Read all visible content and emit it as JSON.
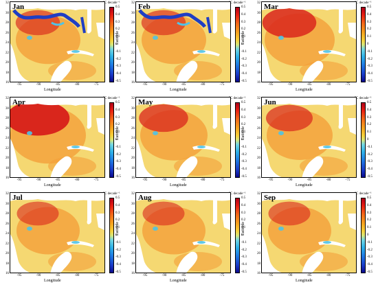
{
  "panels": [
    {
      "month": "Jan"
    },
    {
      "month": "Feb"
    },
    {
      "month": "Mar"
    },
    {
      "month": "Apr"
    },
    {
      "month": "May"
    },
    {
      "month": "Jun"
    },
    {
      "month": "Jul"
    },
    {
      "month": "Aug"
    },
    {
      "month": "Sep"
    }
  ],
  "axes": {
    "ylabel": "Latitude",
    "xlabel": "Longitude",
    "yticks": [
      "32",
      "30",
      "28",
      "26",
      "24",
      "22",
      "20",
      "18",
      "16"
    ],
    "xticks": [
      "-95",
      "-90",
      "-85",
      "-80",
      "-75"
    ]
  },
  "colorbar": {
    "unit": "°C decade⁻¹",
    "ticks": [
      "0.5",
      "0.4",
      "0.3",
      "0.2",
      "0.1",
      "0",
      "-0.1",
      "-0.2",
      "-0.3",
      "-0.4",
      "-0.5"
    ]
  },
  "colors": {
    "land": "#ffffff",
    "warm_strong": "#d9261c",
    "warm": "#f4a03a",
    "neutral": "#f5d872",
    "cool": "#4fc3e6",
    "cold": "#1f3ec4"
  }
}
